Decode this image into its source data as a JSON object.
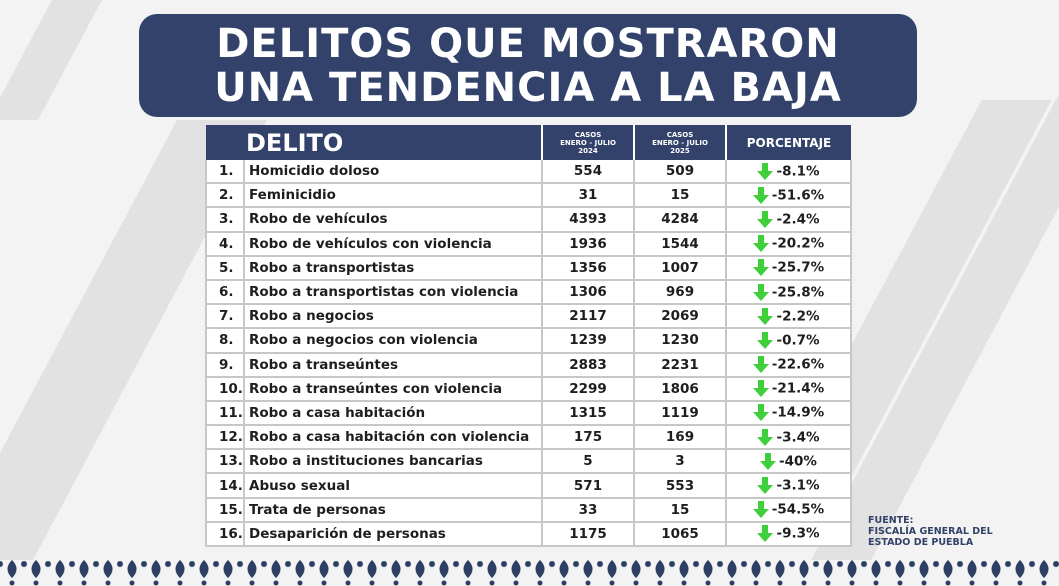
{
  "title": {
    "line1": "DELITOS QUE MOSTRARON",
    "line2": "UNA TENDENCIA A LA BAJA"
  },
  "table": {
    "headers": {
      "delito": "DELITO",
      "casos2024": [
        "CASOS",
        "ENERO - JULIO",
        "2024"
      ],
      "casos2025": [
        "CASOS",
        "ENERO - JULIO",
        "2025"
      ],
      "porcentaje": "PORCENTAJE"
    },
    "rows": [
      {
        "num": "1.",
        "delito": "Homicidio doloso",
        "y2024": "554",
        "y2025": "509",
        "pct": "-8.1%"
      },
      {
        "num": "2.",
        "delito": "Feminicidio",
        "y2024": "31",
        "y2025": "15",
        "pct": "-51.6%"
      },
      {
        "num": "3.",
        "delito": "Robo de vehículos",
        "y2024": "4393",
        "y2025": "4284",
        "pct": "-2.4%"
      },
      {
        "num": "4.",
        "delito": "Robo de vehículos con violencia",
        "y2024": "1936",
        "y2025": "1544",
        "pct": "-20.2%"
      },
      {
        "num": "5.",
        "delito": "Robo a transportistas",
        "y2024": "1356",
        "y2025": "1007",
        "pct": "-25.7%"
      },
      {
        "num": "6.",
        "delito": "Robo a transportistas con violencia",
        "y2024": "1306",
        "y2025": "969",
        "pct": "-25.8%"
      },
      {
        "num": "7.",
        "delito": "Robo a negocios",
        "y2024": "2117",
        "y2025": "2069",
        "pct": "-2.2%"
      },
      {
        "num": "8.",
        "delito": "Robo a negocios con violencia",
        "y2024": "1239",
        "y2025": "1230",
        "pct": "-0.7%"
      },
      {
        "num": "9.",
        "delito": "Robo a transeúntes",
        "y2024": "2883",
        "y2025": "2231",
        "pct": "-22.6%"
      },
      {
        "num": "10.",
        "delito": "Robo a transeúntes con violencia",
        "y2024": "2299",
        "y2025": "1806",
        "pct": "-21.4%"
      },
      {
        "num": "11.",
        "delito": "Robo a casa habitación",
        "y2024": "1315",
        "y2025": "1119",
        "pct": "-14.9%"
      },
      {
        "num": "12.",
        "delito": "Robo a casa habitación con violencia",
        "y2024": "175",
        "y2025": "169",
        "pct": "-3.4%"
      },
      {
        "num": "13.",
        "delito": "Robo a instituciones bancarias",
        "y2024": "5",
        "y2025": "3",
        "pct": "-40%"
      },
      {
        "num": "14.",
        "delito": "Abuso sexual",
        "y2024": "571",
        "y2025": "553",
        "pct": "-3.1%"
      },
      {
        "num": "15.",
        "delito": "Trata de personas",
        "y2024": "33",
        "y2025": "15",
        "pct": "-54.5%"
      },
      {
        "num": "16.",
        "delito": "Desaparición de personas",
        "y2024": "1175",
        "y2025": "1065",
        "pct": "-9.3%"
      }
    ]
  },
  "source": {
    "line1": "FUENTE:",
    "line2": "FISCALÍA GENERAL DEL",
    "line3": "ESTADO DE PUEBLA"
  },
  "colors": {
    "navy": "#33426a",
    "arrow_green": "#3fcf3a",
    "border_pattern": "#2e3f66"
  },
  "icons": {
    "trend": "green-down-arrow-icon"
  }
}
